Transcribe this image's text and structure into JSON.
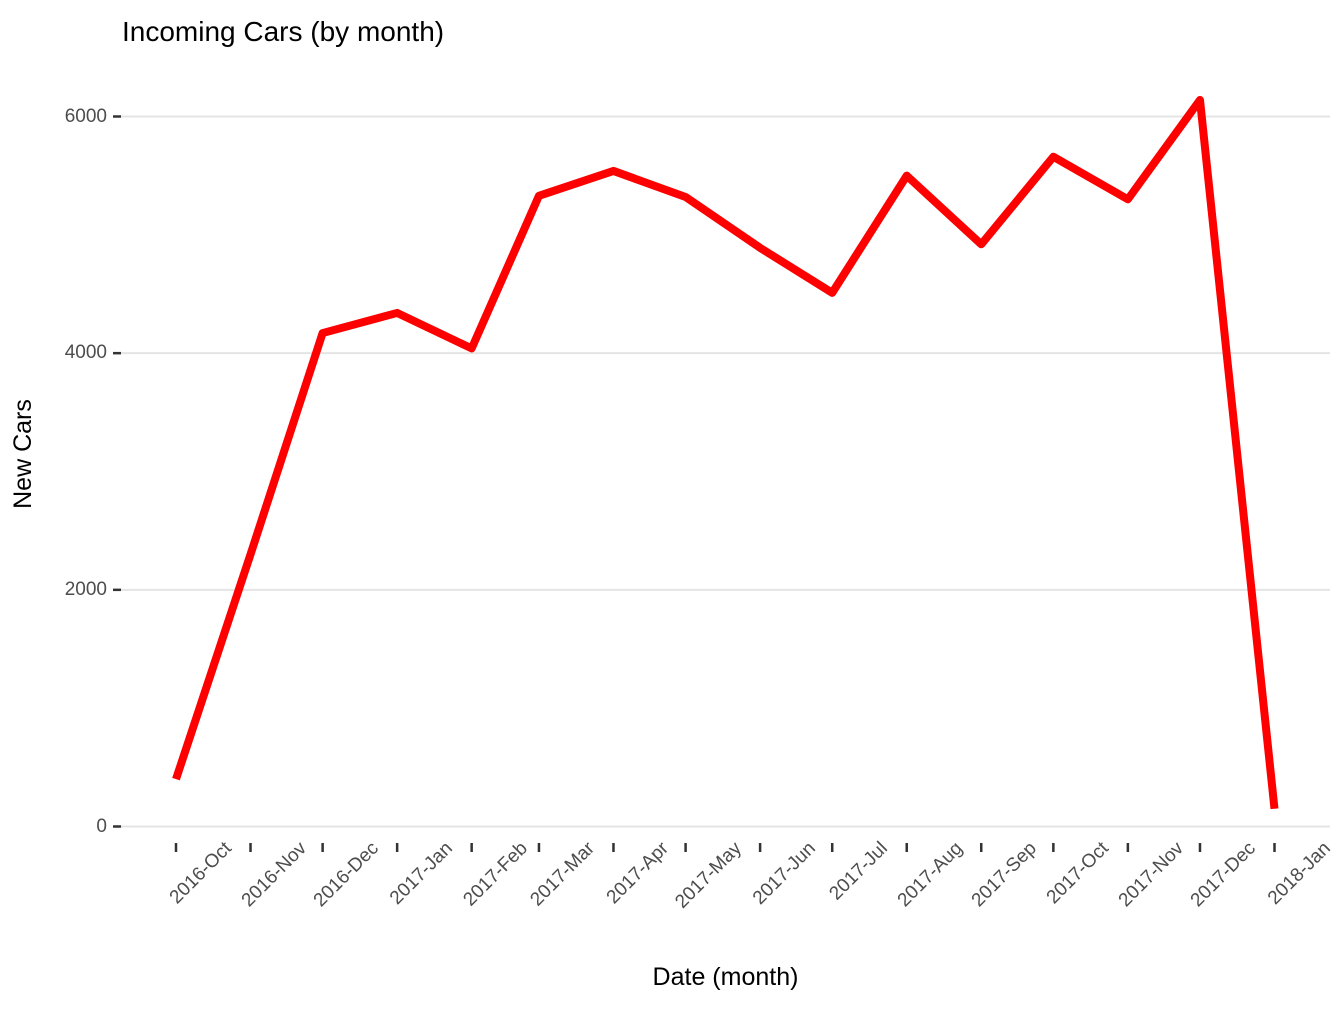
{
  "title": "Incoming Cars (by month)",
  "x_axis": {
    "label": "Date (month)",
    "ticks": [
      "2016-Oct",
      "2016-Nov",
      "2016-Dec",
      "2017-Jan",
      "2017-Feb",
      "2017-Mar",
      "2017-Apr",
      "2017-May",
      "2017-Jun",
      "2017-Jul",
      "2017-Aug",
      "2017-Sep",
      "2017-Oct",
      "2017-Nov",
      "2017-Dec",
      "2018-Jan"
    ]
  },
  "y_axis": {
    "label": "New Cars",
    "ticks": [
      0,
      2000,
      4000,
      6000
    ]
  },
  "chart_data": {
    "type": "line",
    "title": "Incoming Cars (by month)",
    "xlabel": "Date (month)",
    "ylabel": "New Cars",
    "x": [
      "2016-Oct",
      "2016-Nov",
      "2016-Dec",
      "2017-Jan",
      "2017-Feb",
      "2017-Mar",
      "2017-Apr",
      "2017-May",
      "2017-Jun",
      "2017-Jul",
      "2017-Aug",
      "2017-Sep",
      "2017-Oct",
      "2017-Nov",
      "2017-Dec",
      "2018-Jan"
    ],
    "values": [
      400,
      2300,
      4170,
      4340,
      4040,
      5330,
      5540,
      5320,
      4890,
      4510,
      5500,
      4920,
      5660,
      5300,
      6140,
      150
    ],
    "ylim": [
      0,
      6440
    ],
    "yticks": [
      0,
      2000,
      4000,
      6000
    ],
    "grid": "horizontal-major-only",
    "legend": "none",
    "line_color": "#FF0000",
    "line_width": 8
  },
  "colors": {
    "line": "#FF0000",
    "grid": "#E4E4E4",
    "tick_mark": "#333333",
    "tick_label": "#4D4D4D",
    "text": "#000000",
    "background": "#FFFFFF"
  }
}
